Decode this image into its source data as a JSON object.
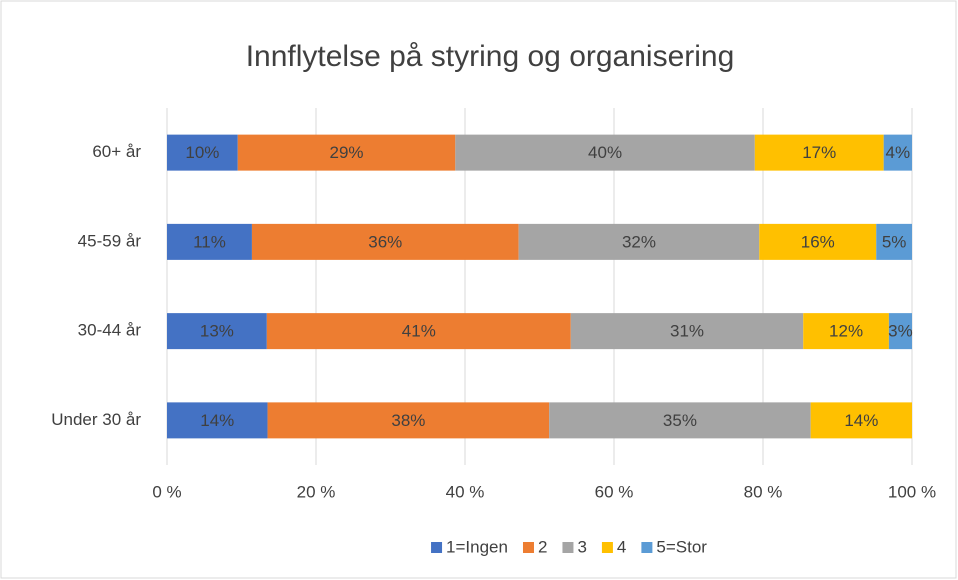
{
  "chart_data": {
    "type": "stacked-bar-horizontal",
    "title": "Innflytelse på styring og organisering",
    "categories": [
      "60+ år",
      "45-59 år",
      "30-44 år",
      "Under 30 år"
    ],
    "series": [
      {
        "name": "1=Ingen",
        "color": "#4472c4",
        "values": [
          9.5,
          11.4,
          13.4,
          13.5
        ],
        "value_labels": [
          "10%",
          "11%",
          "13%",
          "14%"
        ]
      },
      {
        "name": "2",
        "color": "#ed7d31",
        "values": [
          29.2,
          35.8,
          40.8,
          37.8
        ],
        "value_labels": [
          "29%",
          "36%",
          "41%",
          "38%"
        ]
      },
      {
        "name": "3",
        "color": "#a5a5a5",
        "values": [
          40.2,
          32.3,
          31.2,
          35.1
        ],
        "value_labels": [
          "40%",
          "32%",
          "31%",
          "35%"
        ]
      },
      {
        "name": "4",
        "color": "#ffc000",
        "values": [
          17.3,
          15.7,
          11.5,
          13.6
        ],
        "value_labels": [
          "17%",
          "16%",
          "12%",
          "14%"
        ]
      },
      {
        "name": "5=Stor",
        "color": "#5b9bd5",
        "values": [
          3.8,
          4.8,
          3.1,
          null
        ],
        "value_labels": [
          "4%",
          "5%",
          "3%",
          null
        ]
      }
    ],
    "xlim": [
      0,
      100
    ],
    "xticks": [
      {
        "value": 0,
        "label": "0 %"
      },
      {
        "value": 20,
        "label": "20 %"
      },
      {
        "value": 40,
        "label": "40 %"
      },
      {
        "value": 60,
        "label": "60 %"
      },
      {
        "value": 80,
        "label": "80 %"
      },
      {
        "value": 100,
        "label": "100 %"
      }
    ],
    "grid": true,
    "legend": "bottom"
  }
}
